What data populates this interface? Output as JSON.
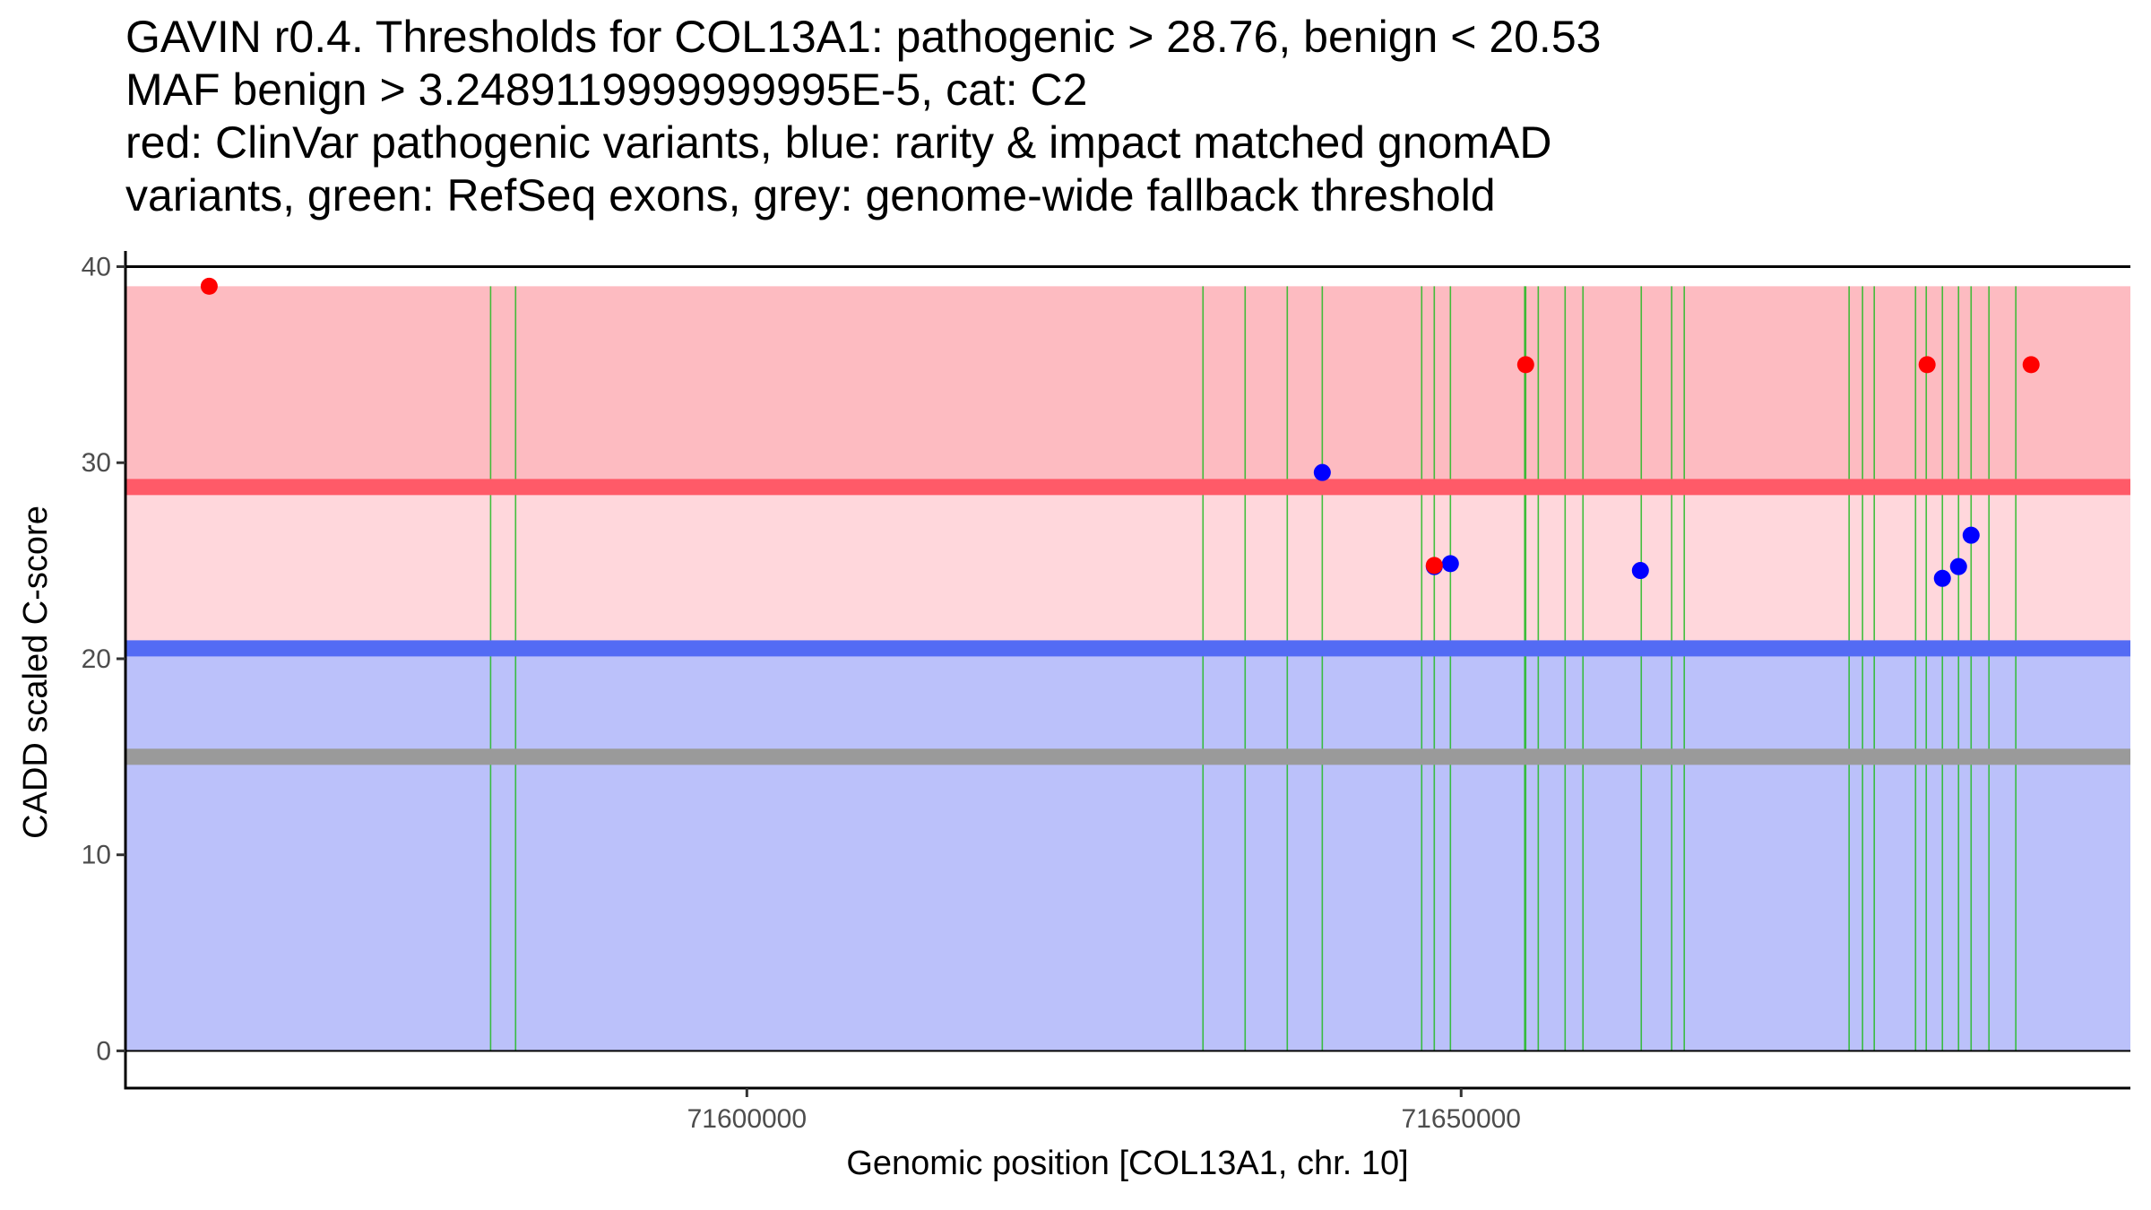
{
  "title_lines": [
    "GAVIN r0.4. Thresholds for COL13A1: pathogenic > 28.76, benign < 20.53",
    "MAF benign > 3.2489119999999995E-5, cat: C2",
    "red: ClinVar pathogenic variants, blue: rarity & impact matched gnomAD",
    "variants, green: RefSeq exons, grey: genome-wide fallback threshold"
  ],
  "colors": {
    "pathogenic_zone": "#FDBBC1",
    "vus_zone": "#FFD7DC",
    "benign_zone": "#BBC1FA",
    "pathogenic_line": "#FF5A68",
    "benign_line": "#536BF4",
    "fallback_line": "#9A9A9A",
    "exon": "#22BB22",
    "clinvar_point": "#FF0000",
    "gnomad_point": "#0000FF",
    "axis": "#000000"
  },
  "chart_data": {
    "type": "scatter",
    "title": "GAVIN r0.4. Thresholds for COL13A1: pathogenic > 28.76, benign < 20.53 / MAF benign > 3.2489119999999995E-5, cat: C2",
    "xlabel": "Genomic position [COL13A1, chr. 10]",
    "ylabel": "CADD scaled C-score",
    "xlim": [
      71556500,
      71696850
    ],
    "ylim": [
      -1.9,
      40.8
    ],
    "x_ticks": [
      71600000,
      71650000
    ],
    "x_tick_labels": [
      "71600000",
      "71650000"
    ],
    "y_ticks": [
      0,
      10,
      20,
      30,
      40
    ],
    "y_tick_labels": [
      "0",
      "10",
      "20",
      "30",
      "40"
    ],
    "grid": false,
    "zones": [
      {
        "name": "pathogenic",
        "from": 28.76,
        "to": 39
      },
      {
        "name": "vus",
        "from": 20.53,
        "to": 28.76
      },
      {
        "name": "benign",
        "from": 0,
        "to": 20.53
      }
    ],
    "thresholds": {
      "pathogenic": 28.76,
      "benign": 20.53,
      "genome_wide_fallback": 15
    },
    "hlines": [
      0,
      40
    ],
    "exons": [
      71582060,
      71583810,
      71631930,
      71634880,
      71637830,
      71640280,
      71647240,
      71648120,
      71649250,
      71654450,
      71654520,
      71655400,
      71657280,
      71658530,
      71662610,
      71664740,
      71665620,
      71677160,
      71678100,
      71678920,
      71681810,
      71682560,
      71683690,
      71684820,
      71685700,
      71686950,
      71688830
    ],
    "series": [
      {
        "name": "gnomAD (rarity & impact matched)",
        "color": "blue",
        "points": [
          {
            "x": 71640280,
            "y": 29.5
          },
          {
            "x": 71648120,
            "y": 24.7
          },
          {
            "x": 71649250,
            "y": 24.85
          },
          {
            "x": 71662550,
            "y": 24.5
          },
          {
            "x": 71683690,
            "y": 24.1
          },
          {
            "x": 71684820,
            "y": 24.7
          },
          {
            "x": 71685700,
            "y": 26.3
          }
        ]
      },
      {
        "name": "ClinVar pathogenic",
        "color": "red",
        "points": [
          {
            "x": 71562360,
            "y": 39
          },
          {
            "x": 71648120,
            "y": 24.76
          },
          {
            "x": 71654520,
            "y": 35
          },
          {
            "x": 71682620,
            "y": 35
          },
          {
            "x": 71689900,
            "y": 35
          }
        ]
      }
    ]
  }
}
